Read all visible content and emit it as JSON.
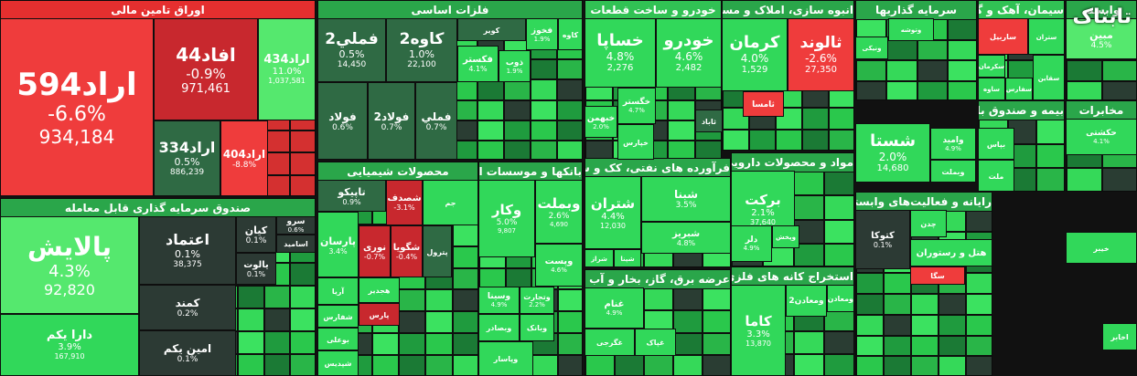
{
  "chart_data": {
    "type": "heatmap",
    "title": "",
    "colors": {
      "strong_up": "#21c94a",
      "up": "#31d85a",
      "light_up": "#55e86e",
      "flat": "#2f6a44",
      "down": "#c8282e",
      "strong_down": "#ef3c3c",
      "dark": "#2c3a34"
    },
    "watermark": "تابناک",
    "sectors": [
      {
        "name": "اوراق تامین مالی",
        "color": "#e52f2f"
      },
      {
        "name": "فلزات اساسی",
        "color": "#2f9b49"
      },
      {
        "name": "خودرو و ساخت قطعات",
        "color": "#31c254"
      },
      {
        "name": "انبوه سازی، املاک و مستغلات",
        "color": "#2f9b49"
      },
      {
        "name": "سرمایه گذاریها",
        "color": "#2f9b49"
      },
      {
        "name": "سیمان، آهک و گچ",
        "color": "#31c254"
      },
      {
        "name": "وابسته",
        "color": "#2f9b49"
      },
      {
        "name": "صندوق سرمایه گذاری قابل معامله",
        "color": "#2f9b49"
      },
      {
        "name": "محصولات شیمیایی",
        "color": "#2f9b49"
      },
      {
        "name": "بانکها و موسسات اعتباری",
        "color": "#2f9b49"
      },
      {
        "name": "فرآورده های نفتی، کک و سوخت هسته ای",
        "color": "#2f9b49"
      },
      {
        "name": "مواد و محصولات دارویی",
        "color": "#2f9b49"
      },
      {
        "name": "عرضه برق، گاز، بخار و آب گرم",
        "color": "#2f9b49"
      },
      {
        "name": "استخراج کانه های فلزی",
        "color": "#2f9b49"
      },
      {
        "name": "رایانه و فعالیت‌های وابسته به آن",
        "color": "#2f9b49"
      },
      {
        "name": "بیمه و صندوق بازنشستگی به جز تامین اجتماعی",
        "color": "#2f9b49"
      },
      {
        "name": "مخابرات",
        "color": "#2f9b49"
      }
    ],
    "tiles": [
      {
        "symbol": "اراد594",
        "change": "-6.6%",
        "volume": "934,184"
      },
      {
        "symbol": "افاد44",
        "change": "-0.9%",
        "volume": "971,461"
      },
      {
        "symbol": "اراد434",
        "change": "11.0%",
        "volume": "1,037,581"
      },
      {
        "symbol": "اراد334",
        "change": "0.5%",
        "volume": "886,239"
      },
      {
        "symbol": "اراد404",
        "change": "-8.8%",
        "volume": ""
      },
      {
        "symbol": "پالایش",
        "change": "4.3%",
        "volume": "92,820"
      },
      {
        "symbol": "اعتماد",
        "change": "0.1%",
        "volume": "38,375"
      },
      {
        "symbol": "کیان",
        "change": "0.1%",
        "volume": ""
      },
      {
        "symbol": "سرو",
        "change": "0.6%",
        "volume": ""
      },
      {
        "symbol": "اسامید",
        "change": "",
        "volume": ""
      },
      {
        "symbol": "یالوت",
        "change": "0.1%",
        "volume": ""
      },
      {
        "symbol": "کمند",
        "change": "0.2%",
        "volume": ""
      },
      {
        "symbol": "دارا یکم",
        "change": "3.9%",
        "volume": "167,910"
      },
      {
        "symbol": "امین یکم",
        "change": "0.1%",
        "volume": ""
      },
      {
        "symbol": "فملي2",
        "change": "0.5%",
        "volume": "14,450"
      },
      {
        "symbol": "کاوه2",
        "change": "1.0%",
        "volume": "22,100"
      },
      {
        "symbol": "کویر",
        "change": "",
        "volume": ""
      },
      {
        "symbol": "فخوز",
        "change": "1.9%",
        "volume": ""
      },
      {
        "symbol": "کاوه",
        "change": "",
        "volume": ""
      },
      {
        "symbol": "فكستر",
        "change": "4.1%",
        "volume": ""
      },
      {
        "symbol": "ذوب",
        "change": "1.9%",
        "volume": ""
      },
      {
        "symbol": "فولاد",
        "change": "0.6%",
        "volume": ""
      },
      {
        "symbol": "فولاد2",
        "change": "0.7%",
        "volume": ""
      },
      {
        "symbol": "فملي",
        "change": "0.7%",
        "volume": ""
      },
      {
        "symbol": "خساپا",
        "change": "4.8%",
        "volume": "2,276"
      },
      {
        "symbol": "خودرو",
        "change": "4.6%",
        "volume": "2,482"
      },
      {
        "symbol": "خگستر",
        "change": "4.7%",
        "volume": ""
      },
      {
        "symbol": "خبهمن",
        "change": "2.0%",
        "volume": ""
      },
      {
        "symbol": "خپارس",
        "change": "",
        "volume": ""
      },
      {
        "symbol": "کرمان",
        "change": "4.0%",
        "volume": "1,529"
      },
      {
        "symbol": "ثالوند",
        "change": "-2.6%",
        "volume": "27,350"
      },
      {
        "symbol": "ثامسا",
        "change": "",
        "volume": ""
      },
      {
        "symbol": "ثاباد",
        "change": "",
        "volume": ""
      },
      {
        "symbol": "شستا",
        "change": "2.0%",
        "volume": "14,680"
      },
      {
        "symbol": "وامید",
        "change": "4.9%",
        "volume": ""
      },
      {
        "symbol": "وبملت",
        "change": "",
        "volume": ""
      },
      {
        "symbol": "ونیکی",
        "change": "",
        "volume": ""
      },
      {
        "symbol": "وتوشه",
        "change": "",
        "volume": ""
      },
      {
        "symbol": "ساربیل",
        "change": "",
        "volume": ""
      },
      {
        "symbol": "سکرمان",
        "change": "",
        "volume": ""
      },
      {
        "symbol": "سفارس",
        "change": "",
        "volume": ""
      },
      {
        "symbol": "ساوه",
        "change": "",
        "volume": ""
      },
      {
        "symbol": "ستران",
        "change": "",
        "volume": ""
      },
      {
        "symbol": "سقاین",
        "change": "",
        "volume": ""
      },
      {
        "symbol": "مبین",
        "change": "4.5%",
        "volume": ""
      },
      {
        "symbol": "تاپیکو",
        "change": "0.9%",
        "volume": ""
      },
      {
        "symbol": "شصدف",
        "change": "-3.1%",
        "volume": ""
      },
      {
        "symbol": "پارسان",
        "change": "3.4%",
        "volume": ""
      },
      {
        "symbol": "نوری",
        "change": "-0.7%",
        "volume": ""
      },
      {
        "symbol": "شگویا",
        "change": "-0.4%",
        "volume": ""
      },
      {
        "symbol": "پترول",
        "change": "",
        "volume": ""
      },
      {
        "symbol": "آریا",
        "change": "",
        "volume": ""
      },
      {
        "symbol": "هجدیر",
        "change": "",
        "volume": ""
      },
      {
        "symbol": "شفارس",
        "change": "",
        "volume": ""
      },
      {
        "symbol": "پارس",
        "change": "",
        "volume": ""
      },
      {
        "symbol": "جم",
        "change": "",
        "volume": ""
      },
      {
        "symbol": "بوعلی",
        "change": "",
        "volume": ""
      },
      {
        "symbol": "شپدیس",
        "change": "",
        "volume": ""
      },
      {
        "symbol": "وبملت",
        "change": "2.6%",
        "volume": "4,690"
      },
      {
        "symbol": "وكار",
        "change": "5.0%",
        "volume": "9,807"
      },
      {
        "symbol": "وپست",
        "change": "4.6%",
        "volume": ""
      },
      {
        "symbol": "وسینا",
        "change": "4.9%",
        "volume": ""
      },
      {
        "symbol": "وتجارت",
        "change": "2.2%",
        "volume": ""
      },
      {
        "symbol": "وبصادر",
        "change": "",
        "volume": ""
      },
      {
        "symbol": "وبانک",
        "change": "",
        "volume": ""
      },
      {
        "symbol": "وپاسار",
        "change": "",
        "volume": ""
      },
      {
        "symbol": "شتران",
        "change": "4.4%",
        "volume": "12,030"
      },
      {
        "symbol": "شبنا",
        "change": "3.5%",
        "volume": ""
      },
      {
        "symbol": "شبریز",
        "change": "4.8%",
        "volume": ""
      },
      {
        "symbol": "شراز",
        "change": "",
        "volume": ""
      },
      {
        "symbol": "شپنا",
        "change": "",
        "volume": ""
      },
      {
        "symbol": "برکت",
        "change": "2.1%",
        "volume": "37,640"
      },
      {
        "symbol": "دلر",
        "change": "4.9%",
        "volume": ""
      },
      {
        "symbol": "وپخش",
        "change": "",
        "volume": ""
      },
      {
        "symbol": "کاما",
        "change": "3.3%",
        "volume": "13,870"
      },
      {
        "symbol": "ومعادن2",
        "change": "",
        "volume": ""
      },
      {
        "symbol": "ومعادن",
        "change": "",
        "volume": ""
      },
      {
        "symbol": "غنام",
        "change": "4.9%",
        "volume": ""
      },
      {
        "symbol": "غگرجی",
        "change": "",
        "volume": ""
      },
      {
        "symbol": "غپاک",
        "change": "",
        "volume": ""
      },
      {
        "symbol": "خیبر",
        "change": "",
        "volume": ""
      },
      {
        "symbol": "کتوکا",
        "change": "0.1%",
        "volume": ""
      },
      {
        "symbol": "حکشتی",
        "change": "4.1%",
        "volume": ""
      },
      {
        "symbol": "بپاس",
        "change": "",
        "volume": ""
      },
      {
        "symbol": "ملت",
        "change": "",
        "volume": ""
      },
      {
        "symbol": "چدن",
        "change": "",
        "volume": ""
      },
      {
        "symbol": "هتل و رستوران",
        "change": "",
        "volume": ""
      },
      {
        "symbol": "سگا",
        "change": "",
        "volume": ""
      },
      {
        "symbol": "اخابر",
        "change": "",
        "volume": ""
      }
    ]
  }
}
